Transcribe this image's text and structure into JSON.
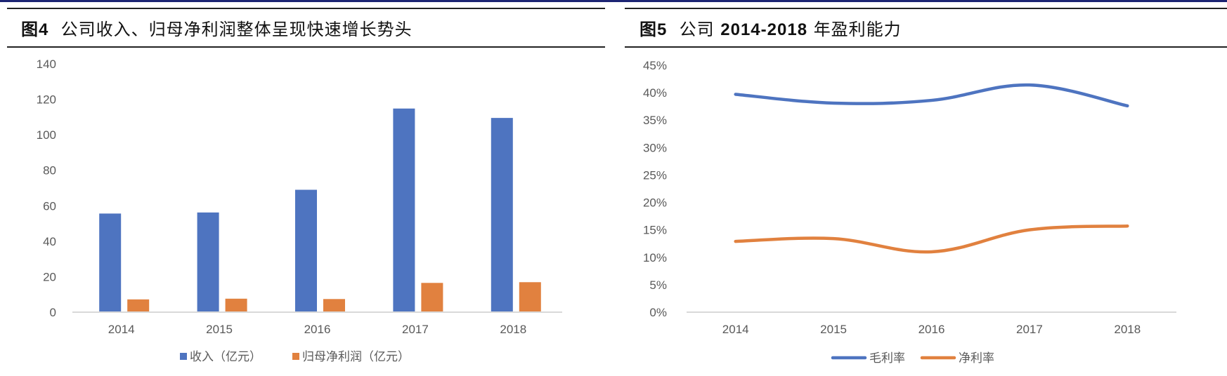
{
  "header": {
    "bar_color": "#1c2473"
  },
  "figures": [
    {
      "id_label": "图4",
      "title": "公司收入、归母净利润整体呈现快速增长势头"
    },
    {
      "id_label": "图5",
      "title_prefix": "公司",
      "title_bold": "2014-2018",
      "title_suffix": "年盈利能力"
    }
  ],
  "chart_data": [
    {
      "type": "bar",
      "title": "公司收入、归母净利润整体呈现快速增长势头",
      "categories": [
        "2014",
        "2015",
        "2016",
        "2017",
        "2018"
      ],
      "series": [
        {
          "name": "收入（亿元）",
          "color": "#4e74c0",
          "values": [
            55.6,
            56.2,
            69.0,
            114.8,
            109.5
          ]
        },
        {
          "name": "归母净利润（亿元）",
          "color": "#e1813f",
          "values": [
            7.2,
            7.6,
            7.4,
            16.5,
            16.9
          ]
        }
      ],
      "xlabel": "",
      "ylabel": "",
      "ylim": [
        0,
        140
      ],
      "yticks": [
        "0",
        "20",
        "40",
        "60",
        "80",
        "100",
        "120",
        "140"
      ],
      "grid": false,
      "legend_position": "bottom"
    },
    {
      "type": "line",
      "title": "公司 2014-2018 年盈利能力",
      "categories": [
        "2014",
        "2015",
        "2016",
        "2017",
        "2018"
      ],
      "series": [
        {
          "name": "毛利率",
          "color": "#4e74c0",
          "values": [
            39.7,
            38.1,
            38.6,
            41.4,
            37.6
          ]
        },
        {
          "name": "净利率",
          "color": "#e1813f",
          "values": [
            12.9,
            13.4,
            11.0,
            15.0,
            15.7
          ]
        }
      ],
      "xlabel": "",
      "ylabel": "",
      "ylim": [
        0,
        45
      ],
      "yticks": [
        "0%",
        "5%",
        "10%",
        "15%",
        "20%",
        "25%",
        "30%",
        "35%",
        "40%",
        "45%"
      ],
      "smooth": true,
      "grid": false,
      "legend_position": "bottom"
    }
  ]
}
